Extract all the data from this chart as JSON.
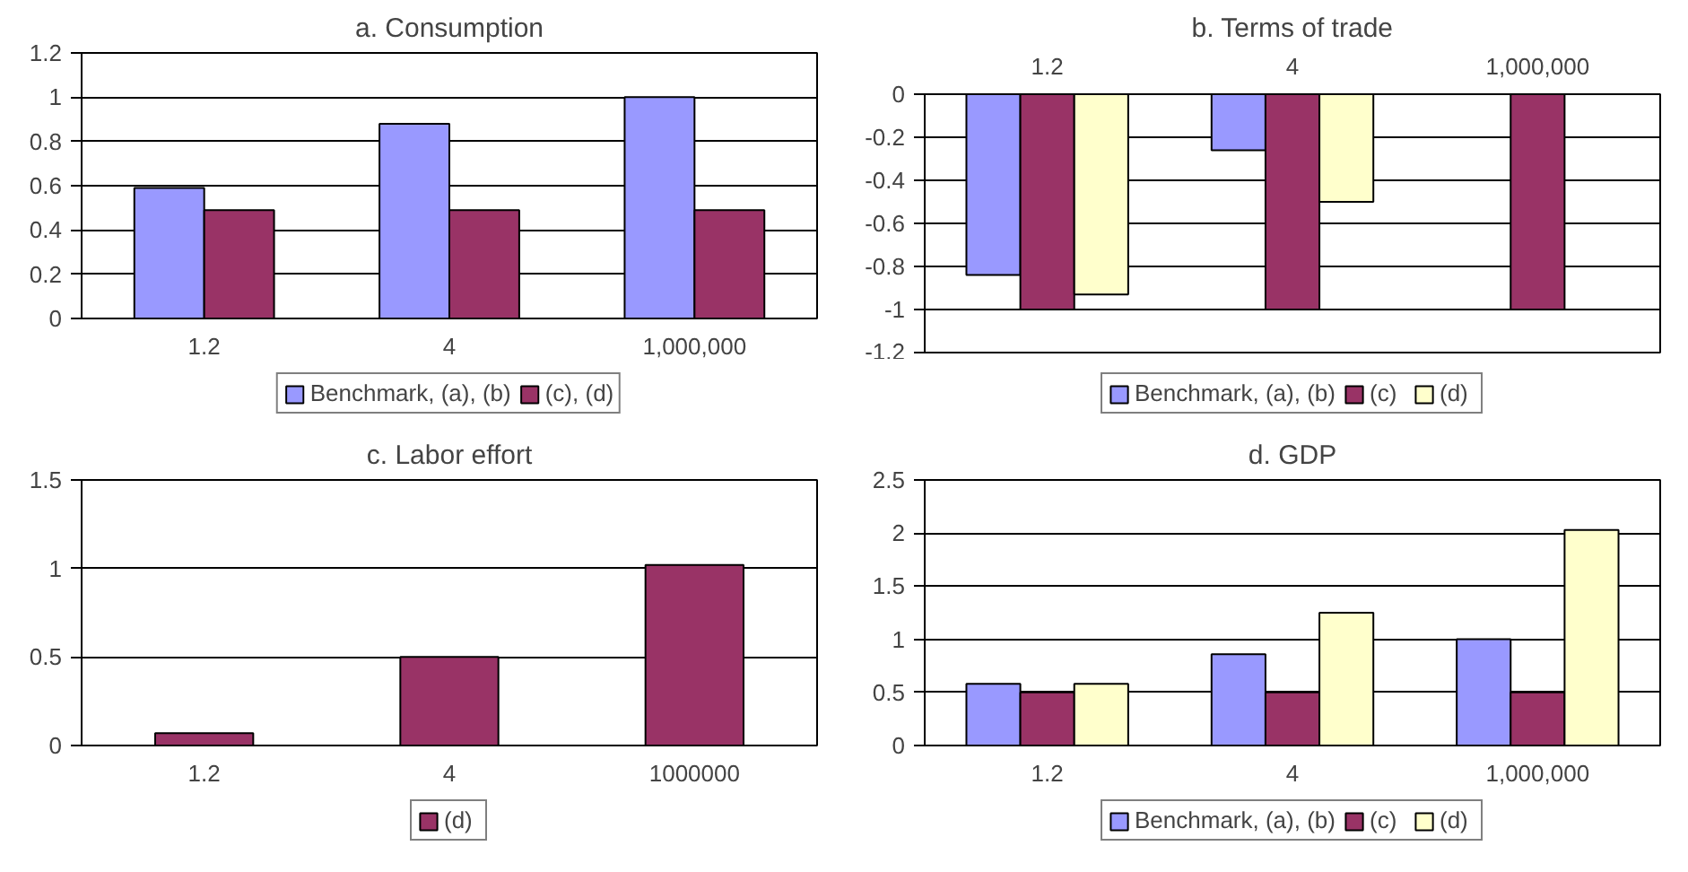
{
  "chart_data": [
    {
      "type": "bar",
      "title": "a. Consumption",
      "categories": [
        "1.2",
        "4",
        "1,000,000"
      ],
      "ylim": [
        0,
        1.2
      ],
      "yticks": [
        0,
        0.2,
        0.4,
        0.6,
        0.8,
        1,
        1.2
      ],
      "grid": "y",
      "legend": "bottom",
      "series": [
        {
          "name": "Benchmark, (a), (b)",
          "color": "#9999ff",
          "values": [
            0.59,
            0.88,
            1.0
          ]
        },
        {
          "name": "(c), (d)",
          "color": "#993366",
          "values": [
            0.49,
            0.49,
            0.49
          ]
        }
      ]
    },
    {
      "type": "bar",
      "title": "b. Terms of trade",
      "categories": [
        "1.2",
        "4",
        "1,000,000"
      ],
      "ylim": [
        -1.2,
        0
      ],
      "yticks": [
        -1.2,
        -1,
        -0.8,
        -0.6,
        -0.4,
        -0.2,
        0
      ],
      "grid": "y",
      "legend": "bottom",
      "series": [
        {
          "name": "Benchmark, (a), (b)",
          "color": "#9999ff",
          "values": [
            -0.84,
            -0.26,
            null
          ]
        },
        {
          "name": "(c)",
          "color": "#993366",
          "values": [
            -1,
            -1,
            -1
          ]
        },
        {
          "name": "(d)",
          "color": "#ffffcc",
          "values": [
            -0.93,
            -0.5,
            null
          ]
        }
      ]
    },
    {
      "type": "bar",
      "title": "c. Labor effort",
      "categories": [
        "1.2",
        "4",
        "1000000"
      ],
      "ylim": [
        0,
        1.5
      ],
      "yticks": [
        0,
        0.5,
        1,
        1.5
      ],
      "grid": "y",
      "legend": "bottom",
      "series": [
        {
          "name": "(d)",
          "color": "#993366",
          "values": [
            0.07,
            0.5,
            1.02
          ]
        }
      ]
    },
    {
      "type": "bar",
      "title": "d. GDP",
      "categories": [
        "1.2",
        "4",
        "1,000,000"
      ],
      "ylim": [
        0,
        2.5
      ],
      "yticks": [
        0,
        0.5,
        1,
        1.5,
        2,
        2.5
      ],
      "grid": "y",
      "legend": "bottom",
      "series": [
        {
          "name": "Benchmark, (a), (b)",
          "color": "#9999ff",
          "values": [
            0.58,
            0.86,
            1.0
          ]
        },
        {
          "name": "(c)",
          "color": "#993366",
          "values": [
            0.5,
            0.5,
            0.5
          ]
        },
        {
          "name": "(d)",
          "color": "#ffffcc",
          "values": [
            0.58,
            1.25,
            2.03
          ]
        }
      ]
    }
  ]
}
